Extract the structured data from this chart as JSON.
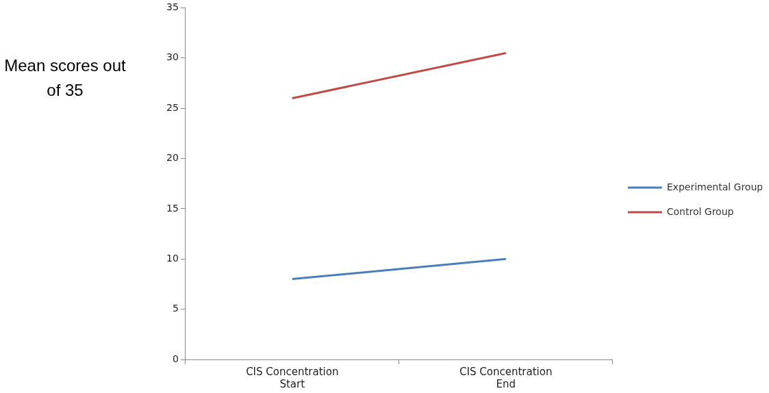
{
  "chart_data": {
    "type": "line",
    "ylabel": "Mean scores out of 35",
    "categories": [
      "CIS Concentration Start",
      "CIS Concentration End"
    ],
    "series": [
      {
        "name": "Experimental Group",
        "color": "#4a7ebb",
        "values": [
          8,
          10
        ]
      },
      {
        "name": "Control Group",
        "color": "#be4b48",
        "values": [
          26,
          30.5
        ]
      }
    ],
    "ylim": [
      0,
      35
    ],
    "yticks": [
      0,
      5,
      10,
      15,
      20,
      25,
      30,
      35
    ],
    "grid": false,
    "legend": "right",
    "marker": "none",
    "line_style": "solid"
  }
}
